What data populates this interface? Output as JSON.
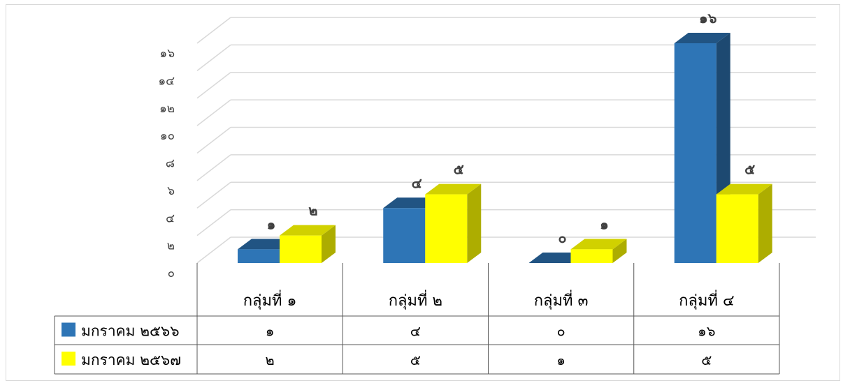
{
  "chart_data": {
    "type": "bar",
    "title": "",
    "xlabel": "",
    "ylabel": "",
    "ylim": [
      0,
      16
    ],
    "y_ticks": [
      "๐",
      "๒",
      "๔",
      "๖",
      "๘",
      "๑๐",
      "๑๒",
      "๑๔",
      "๑๖"
    ],
    "y_tick_values": [
      0,
      2,
      4,
      6,
      8,
      10,
      12,
      14,
      16
    ],
    "grid": true,
    "legend_placement": "data-table-left",
    "categories": [
      "กลุ่มที่ ๑",
      "กลุ่มที่ ๒",
      "กลุ่มที่ ๓",
      "กลุ่มที่ ๔"
    ],
    "series": [
      {
        "name": "มกราคม ๒๕๖๖",
        "values": [
          1,
          4,
          0,
          16
        ],
        "labels": [
          "๑",
          "๔",
          "๐",
          "๑๖"
        ],
        "color": "#2e75b6"
      },
      {
        "name": "มกราคม ๒๕๖๗",
        "values": [
          2,
          5,
          1,
          5
        ],
        "labels": [
          "๒",
          "๕",
          "๑",
          "๕"
        ],
        "color": "#ffff00"
      }
    ]
  }
}
